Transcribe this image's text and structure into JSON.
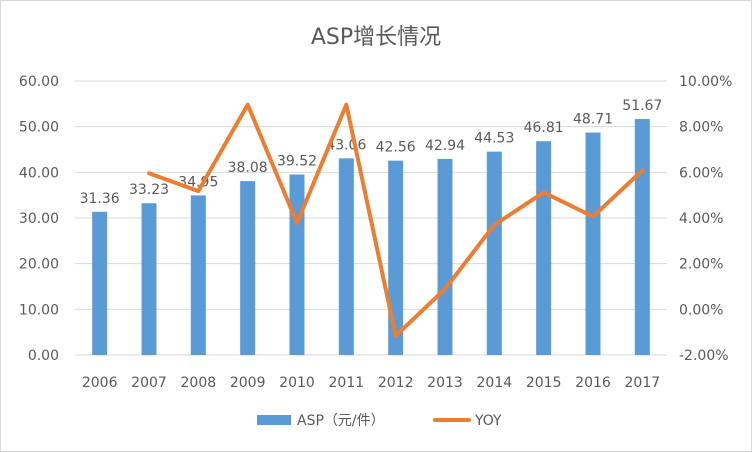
{
  "chart_data": {
    "type": "bar",
    "title": "ASP增长情况",
    "categories": [
      "2006",
      "2007",
      "2008",
      "2009",
      "2010",
      "2011",
      "2012",
      "2013",
      "2014",
      "2015",
      "2016",
      "2017"
    ],
    "series": [
      {
        "name": "ASP（元/件）",
        "type": "bar",
        "axis": "left",
        "color": "#5b9bd5",
        "values": [
          31.36,
          33.23,
          34.95,
          38.08,
          39.52,
          43.06,
          42.56,
          42.94,
          44.53,
          46.81,
          48.71,
          51.67
        ],
        "value_labels": [
          "31.36",
          "33.23",
          "34.95",
          "38.08",
          "39.52",
          "43.06",
          "42.56",
          "42.94",
          "44.53",
          "46.81",
          "48.71",
          "51.67"
        ]
      },
      {
        "name": "YOY",
        "type": "line",
        "axis": "right",
        "color": "#ed7d31",
        "values": [
          null,
          0.0596,
          0.0518,
          0.0896,
          0.0378,
          0.0896,
          -0.0116,
          0.0089,
          0.037,
          0.0512,
          0.0406,
          0.0608
        ]
      }
    ],
    "y_left": {
      "ylim": [
        0,
        60
      ],
      "ticks": [
        0,
        10,
        20,
        30,
        40,
        50,
        60
      ],
      "tick_labels": [
        "0.00",
        "10.00",
        "20.00",
        "30.00",
        "40.00",
        "50.00",
        "60.00"
      ]
    },
    "y_right": {
      "ylim": [
        -0.02,
        0.1
      ],
      "ticks": [
        -0.02,
        0,
        0.02,
        0.04,
        0.06,
        0.08,
        0.1
      ],
      "tick_labels": [
        "-2.00%",
        "0.00%",
        "2.00%",
        "4.00%",
        "6.00%",
        "8.00%",
        "10.00%"
      ]
    },
    "grid": true,
    "legend": "bottom"
  }
}
